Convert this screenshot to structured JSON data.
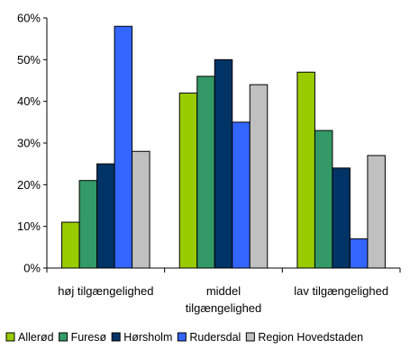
{
  "chart_data": {
    "type": "bar",
    "categories": [
      [
        "høj tilgængelighed"
      ],
      [
        "middel",
        "tilgængelighed"
      ],
      [
        "lav tilgængelighed"
      ]
    ],
    "series": [
      {
        "name": "Allerød",
        "color": "#99CC00",
        "values": [
          11,
          42,
          47
        ]
      },
      {
        "name": "Furesø",
        "color": "#339966",
        "values": [
          21,
          46,
          33
        ]
      },
      {
        "name": "Hørsholm",
        "color": "#003366",
        "values": [
          25,
          50,
          24
        ]
      },
      {
        "name": "Rudersdal",
        "color": "#3366FF",
        "values": [
          58,
          35,
          7
        ]
      },
      {
        "name": "Region Hovedstaden",
        "color": "#C0C0C0",
        "values": [
          28,
          44,
          27
        ]
      }
    ],
    "y_ticks": [
      "0%",
      "10%",
      "20%",
      "30%",
      "40%",
      "50%",
      "60%"
    ],
    "ylim": [
      0,
      60
    ],
    "y_unit": "%",
    "legend_position": "bottom",
    "grid": false
  }
}
